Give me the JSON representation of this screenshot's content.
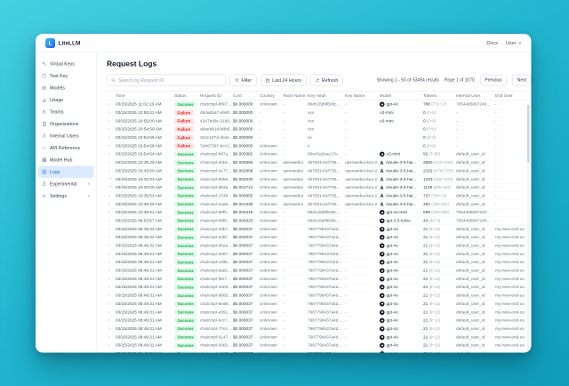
{
  "colors": {
    "accent": "#2563eb",
    "success_text": "#16a34a",
    "success_bg": "#dcfce7",
    "failure_text": "#dc2626",
    "failure_bg": "#fee2e2",
    "bg_gradient_start": "#46d0e2",
    "bg_gradient_end": "#0f9cba"
  },
  "topbar": {
    "brand": "LiteLLM",
    "docs": "Docs",
    "user": "User"
  },
  "sidebar": {
    "items": [
      {
        "label": "Virtual Keys",
        "icon": "key-icon",
        "selected": false,
        "chevron": false
      },
      {
        "label": "Test Key",
        "icon": "shield-icon",
        "selected": false,
        "chevron": false
      },
      {
        "label": "Models",
        "icon": "box-icon",
        "selected": false,
        "chevron": false
      },
      {
        "label": "Usage",
        "icon": "chart-icon",
        "selected": false,
        "chevron": false
      },
      {
        "label": "Teams",
        "icon": "users-icon",
        "selected": false,
        "chevron": false
      },
      {
        "label": "Organizations",
        "icon": "building-icon",
        "selected": false,
        "chevron": false
      },
      {
        "label": "Internal Users",
        "icon": "user-icon",
        "selected": false,
        "chevron": false
      },
      {
        "label": "API Reference",
        "icon": "code-icon",
        "selected": false,
        "chevron": false
      },
      {
        "label": "Model Hub",
        "icon": "grid-icon",
        "selected": false,
        "chevron": false
      },
      {
        "label": "Logs",
        "icon": "logs-icon",
        "selected": true,
        "chevron": false
      },
      {
        "label": "Experimental",
        "icon": "flask-icon",
        "selected": false,
        "chevron": true
      },
      {
        "label": "Settings",
        "icon": "gear-icon",
        "selected": false,
        "chevron": true
      }
    ]
  },
  "page": {
    "title": "Request Logs"
  },
  "toolbar": {
    "search_placeholder": "Search by Request ID",
    "filter": "Filter",
    "time_range": "Last 24 Hours",
    "refresh": "Refresh",
    "showing": "Showing 1 - 50 of 53494 results",
    "page_info": "Page 1 of 1070",
    "previous": "Previous",
    "next": "Next"
  },
  "table": {
    "columns": [
      "",
      "Time",
      "Status",
      "Request ID",
      "Cost",
      "Country",
      "Team Name",
      "Key Hash",
      "Key Name",
      "Model",
      "Tokens",
      "Internal User",
      "End User"
    ],
    "rows": [
      {
        "chev": "right",
        "time": "03/15/2025 11:02:10 AM",
        "status": "Success",
        "request_id": "chatcmpl-8807...",
        "cost": "$0.000000",
        "country": "Unknown",
        "team": "-",
        "key_hash": "88dc28d9f838c...",
        "key_name": "-",
        "model": "gpt-4o",
        "provider": "openai",
        "tokens": "788",
        "tokens_detail": "(771+17)",
        "internal_user": "7054485087240...",
        "end_user": "-"
      },
      {
        "chev": "right",
        "time": "03/15/2025 10:55:42 AM",
        "status": "Failure",
        "request_id": "d8dad5a7-eb80...",
        "cost": "$0.000000",
        "country": "-",
        "team": "-",
        "key_hash": "xxx",
        "key_name": "-",
        "model": "o3-mini",
        "provider": "",
        "tokens": "0",
        "tokens_detail": "(0+0)",
        "internal_user": "-",
        "end_user": "-"
      },
      {
        "chev": "right",
        "time": "03/15/2025 10:55:00 AM",
        "status": "Failure",
        "request_id": "4347bd9c-3188...",
        "cost": "$0.000000",
        "country": "-",
        "team": "-",
        "key_hash": "xxx",
        "key_name": "-",
        "model": "o3-mini",
        "provider": "",
        "tokens": "0",
        "tokens_detail": "(0+0)",
        "internal_user": "-",
        "end_user": "-"
      },
      {
        "chev": "right",
        "time": "03/15/2025 10:54:59 AM",
        "status": "Failure",
        "request_id": "a8aeb81d-b8b8...",
        "cost": "$0.000000",
        "country": "-",
        "team": "-",
        "key_hash": "xxx",
        "key_name": "-",
        "model": "",
        "provider": "",
        "tokens": "0",
        "tokens_detail": "(0+0)",
        "internal_user": "-",
        "end_user": "-"
      },
      {
        "chev": "right",
        "time": "03/15/2025 10:54:59 AM",
        "status": "Failure",
        "request_id": "324c187d-4b4e...",
        "cost": "$0.000000",
        "country": "-",
        "team": "-",
        "key_hash": "xx",
        "key_name": "-",
        "model": "",
        "provider": "",
        "tokens": "0",
        "tokens_detail": "(0+0)",
        "internal_user": "-",
        "end_user": "-"
      },
      {
        "chev": "right",
        "time": "03/15/2025 10:54:58 AM",
        "status": "Failure",
        "request_id": "7eb67387-bcc2...",
        "cost": "$0.000000",
        "country": "Unknown",
        "team": "-",
        "key_hash": "x",
        "key_name": "-",
        "model": "",
        "provider": "",
        "tokens": "0",
        "tokens_detail": "(0+0)",
        "internal_user": "-",
        "end_user": "-"
      },
      {
        "chev": "right",
        "time": "03/15/2025 10:54:54 AM",
        "status": "Success",
        "request_id": "chatcmpl-b87a...",
        "cost": "$0.000382",
        "country": "Unknown",
        "team": "-",
        "key_hash": "86ec5a2eac17e...",
        "key_name": "-",
        "model": "o3-mini",
        "provider": "openai",
        "tokens": "92",
        "tokens_detail": "(7+85)",
        "internal_user": "default_user_id",
        "end_user": "-"
      },
      {
        "chev": "right",
        "time": "03/15/2025 10:45:49 AM",
        "status": "Success",
        "request_id": "chatcmpl-ebbe...",
        "cost": "$0.000656",
        "country": "Unknown",
        "team": "openwebui",
        "key_hash": "4b7651c6cf795...",
        "key_name": "openwebui-key-2",
        "model": "claude-3-5-hai...",
        "provider": "anthropic",
        "tokens": "2580",
        "tokens_detail": "(2127+453)",
        "internal_user": "default_user_id",
        "end_user": "-"
      },
      {
        "chev": "right",
        "time": "03/15/2025 10:43:00 AM",
        "status": "Success",
        "request_id": "chatcmpl-4177...",
        "cost": "$0.002808",
        "country": "Unknown",
        "team": "openwebui",
        "key_hash": "4b7651c6cf795...",
        "key_name": "openwebui-key-2",
        "model": "claude-3-5-hai...",
        "provider": "anthropic",
        "tokens": "2102",
        "tokens_detail": "(1732+370)",
        "internal_user": "default_user_id",
        "end_user": "-"
      },
      {
        "chev": "down",
        "time": "03/15/2025 10:40:33 AM",
        "status": "Success",
        "request_id": "chatcmpl-5858...",
        "cost": "$0.002030",
        "country": "Unknown",
        "team": "openwebui",
        "key_hash": "4b7651c6cf795...",
        "key_name": "openwebui-key-2",
        "model": "claude-3-5-hai...",
        "provider": "anthropic",
        "tokens": "1433",
        "tokens_detail": "(1157+276)",
        "internal_user": "default_user_id",
        "end_user": "-"
      },
      {
        "chev": "down",
        "time": "03/15/2025 10:40:00 AM",
        "status": "Success",
        "request_id": "chatcmpl-883a...",
        "cost": "$0.001714",
        "country": "Unknown",
        "team": "openwebui",
        "key_hash": "4b7651c6cf795...",
        "key_name": "openwebui-key-2",
        "model": "claude-3-5-hai...",
        "provider": "anthropic",
        "tokens": "1139",
        "tokens_detail": "(885+254)",
        "internal_user": "default_user_id",
        "end_user": "-"
      },
      {
        "chev": "right",
        "time": "03/15/2025 10:39:53 AM",
        "status": "Success",
        "request_id": "chatcmpl-1748...",
        "cost": "$0.000855",
        "country": "Unknown",
        "team": "openwebui",
        "key_hash": "4b7651c6cf795...",
        "key_name": "openwebui-key-2",
        "model": "claude-3-5-hai...",
        "provider": "anthropic",
        "tokens": "727",
        "tokens_detail": "(704+23)",
        "internal_user": "default_user_id",
        "end_user": "-"
      },
      {
        "chev": "right",
        "time": "03/15/2025 10:39:46 AM",
        "status": "Success",
        "request_id": "chatcmpl-eaa8...",
        "cost": "$0.001338",
        "country": "Unknown",
        "team": "openwebui",
        "key_hash": "4b7651c6cf795...",
        "key_name": "openwebui-key-2",
        "model": "claude-3-5-hai...",
        "provider": "anthropic",
        "tokens": "482",
        "tokens_detail": "(180+302)",
        "internal_user": "default_user_id",
        "end_user": "-"
      },
      {
        "chev": "right",
        "time": "03/15/2025 10:38:41 AM",
        "status": "Success",
        "request_id": "chatcmpl-88f5...",
        "cost": "$0.000445",
        "country": "Unknown",
        "team": "-",
        "key_hash": "88dc28d9f838c...",
        "key_name": "-",
        "model": "gpt-4o-mini",
        "provider": "openai",
        "tokens": "899",
        "tokens_detail": "(209+690)",
        "internal_user": "7054485087240...",
        "end_user": "-"
      },
      {
        "chev": "right",
        "time": "03/15/2025 09:53:57 AM",
        "status": "Success",
        "request_id": "chatcmpl-88f8...",
        "cost": "$0.000325",
        "country": "Unknown",
        "team": "-",
        "key_hash": "88dc28d9f838c...",
        "key_name": "-",
        "model": "gpt-3.5-turbo",
        "provider": "openai",
        "tokens": "44",
        "tokens_detail": "(41+3)",
        "internal_user": "7054485087240...",
        "end_user": "-"
      },
      {
        "chev": "right",
        "time": "03/15/2025 08:49:32 AM",
        "status": "Success",
        "request_id": "chatcmpl-4db7...",
        "cost": "$0.000037",
        "country": "Unknown",
        "team": "-",
        "key_hash": "7987798437a4d...",
        "key_name": "-",
        "model": "gpt-4o",
        "provider": "openai",
        "tokens": "21",
        "tokens_detail": "(9+12)",
        "internal_user": "default_user_id",
        "end_user": "my-new-end-user-1"
      },
      {
        "chev": "right",
        "time": "03/15/2025 08:49:32 AM",
        "status": "Success",
        "request_id": "chatcmpl-2d8f...",
        "cost": "$0.000037",
        "country": "Unknown",
        "team": "-",
        "key_hash": "7987798437a4d...",
        "key_name": "-",
        "model": "gpt-4o",
        "provider": "openai",
        "tokens": "21",
        "tokens_detail": "(9+12)",
        "internal_user": "default_user_id",
        "end_user": "my-new-end-user-1"
      },
      {
        "chev": "right",
        "time": "03/15/2025 08:49:32 AM",
        "status": "Success",
        "request_id": "chatcmpl-d52a...",
        "cost": "$0.000037",
        "country": "Unknown",
        "team": "-",
        "key_hash": "7987798437a4d...",
        "key_name": "-",
        "model": "gpt-4o",
        "provider": "openai",
        "tokens": "21",
        "tokens_detail": "(9+12)",
        "internal_user": "default_user_id",
        "end_user": "my-new-end-user-1"
      },
      {
        "chev": "right",
        "time": "03/15/2025 08:49:31 AM",
        "status": "Success",
        "request_id": "chatcmpl-a087...",
        "cost": "$0.000037",
        "country": "Unknown",
        "team": "-",
        "key_hash": "7987798437a4d...",
        "key_name": "-",
        "model": "gpt-4o",
        "provider": "openai",
        "tokens": "21",
        "tokens_detail": "(9+12)",
        "internal_user": "default_user_id",
        "end_user": "my-new-end-user-1"
      },
      {
        "chev": "right",
        "time": "03/15/2025 08:49:31 AM",
        "status": "Success",
        "request_id": "chatcmpl-cd3b...",
        "cost": "$0.000037",
        "country": "Unknown",
        "team": "-",
        "key_hash": "7987798437a4d...",
        "key_name": "-",
        "model": "gpt-4o",
        "provider": "openai",
        "tokens": "21",
        "tokens_detail": "(9+12)",
        "internal_user": "default_user_id",
        "end_user": "my-new-end-user-1"
      },
      {
        "chev": "right",
        "time": "03/15/2025 08:49:31 AM",
        "status": "Success",
        "request_id": "chatcmpl-da81...",
        "cost": "$0.000037",
        "country": "Unknown",
        "team": "-",
        "key_hash": "7987798437a4d...",
        "key_name": "-",
        "model": "gpt-4o",
        "provider": "openai",
        "tokens": "21",
        "tokens_detail": "(9+12)",
        "internal_user": "default_user_id",
        "end_user": "my-new-end-user-1"
      },
      {
        "chev": "right",
        "time": "03/15/2025 08:49:31 AM",
        "status": "Success",
        "request_id": "chatcmpl-f5e7...",
        "cost": "$0.000037",
        "country": "Unknown",
        "team": "-",
        "key_hash": "7987798437a4d...",
        "key_name": "-",
        "model": "gpt-4o",
        "provider": "openai",
        "tokens": "21",
        "tokens_detail": "(9+12)",
        "internal_user": "default_user_id",
        "end_user": "my-new-end-user-1"
      },
      {
        "chev": "right",
        "time": "03/15/2025 08:49:31 AM",
        "status": "Success",
        "request_id": "chatcmpl-43e9...",
        "cost": "$0.000037",
        "country": "Unknown",
        "team": "-",
        "key_hash": "7987798437a4d...",
        "key_name": "-",
        "model": "gpt-4o",
        "provider": "openai",
        "tokens": "21",
        "tokens_detail": "(9+12)",
        "internal_user": "default_user_id",
        "end_user": "my-new-end-user-1"
      },
      {
        "chev": "right",
        "time": "03/15/2025 08:49:31 AM",
        "status": "Success",
        "request_id": "chatcmpl-d865...",
        "cost": "$0.000037",
        "country": "Unknown",
        "team": "-",
        "key_hash": "7987798437a4d...",
        "key_name": "-",
        "model": "gpt-4o",
        "provider": "openai",
        "tokens": "21",
        "tokens_detail": "(9+12)",
        "internal_user": "default_user_id",
        "end_user": "my-new-end-user-1"
      },
      {
        "chev": "right",
        "time": "03/15/2025 08:49:31 AM",
        "status": "Success",
        "request_id": "chatcmpl-6ed8...",
        "cost": "$0.000037",
        "country": "Unknown",
        "team": "-",
        "key_hash": "7987798437a4d...",
        "key_name": "-",
        "model": "gpt-4o",
        "provider": "openai",
        "tokens": "21",
        "tokens_detail": "(9+12)",
        "internal_user": "default_user_id",
        "end_user": "my-new-end-user-1"
      },
      {
        "chev": "right",
        "time": "03/15/2025 08:49:31 AM",
        "status": "Success",
        "request_id": "chatcmpl-e891...",
        "cost": "$0.000037",
        "country": "Unknown",
        "team": "-",
        "key_hash": "7987798437a4d...",
        "key_name": "-",
        "model": "gpt-4o",
        "provider": "openai",
        "tokens": "21",
        "tokens_detail": "(9+12)",
        "internal_user": "default_user_id",
        "end_user": "my-new-end-user-1"
      },
      {
        "chev": "right",
        "time": "03/15/2025 08:49:31 AM",
        "status": "Success",
        "request_id": "chatcmpl-6cc7...",
        "cost": "$0.000037",
        "country": "Unknown",
        "team": "-",
        "key_hash": "7987798437a4d...",
        "key_name": "-",
        "model": "gpt-4o",
        "provider": "openai",
        "tokens": "21",
        "tokens_detail": "(9+12)",
        "internal_user": "default_user_id",
        "end_user": "my-new-end-user-1"
      },
      {
        "chev": "right",
        "time": "03/15/2025 08:49:31 AM",
        "status": "Success",
        "request_id": "chatcmpl-77e1...",
        "cost": "$0.000037",
        "country": "Unknown",
        "team": "-",
        "key_hash": "7987798437a4d...",
        "key_name": "-",
        "model": "gpt-4o",
        "provider": "openai",
        "tokens": "21",
        "tokens_detail": "(9+12)",
        "internal_user": "default_user_id",
        "end_user": "my-new-end-user-1"
      },
      {
        "chev": "right",
        "time": "03/15/2025 08:49:31 AM",
        "status": "Success",
        "request_id": "chatcmpl-6147...",
        "cost": "$0.000037",
        "country": "Unknown",
        "team": "-",
        "key_hash": "7987798437a4d...",
        "key_name": "-",
        "model": "gpt-4o",
        "provider": "openai",
        "tokens": "21",
        "tokens_detail": "(9+12)",
        "internal_user": "default_user_id",
        "end_user": "my-new-end-user-1"
      },
      {
        "chev": "right",
        "time": "03/15/2025 08:49:31 AM",
        "status": "Success",
        "request_id": "chatcmpl-0960...",
        "cost": "$0.000037",
        "country": "Unknown",
        "team": "-",
        "key_hash": "7987798437a4d...",
        "key_name": "-",
        "model": "gpt-4o",
        "provider": "openai",
        "tokens": "21",
        "tokens_detail": "(9+12)",
        "internal_user": "default_user_id",
        "end_user": "my-new-end-user-1"
      },
      {
        "chev": "right",
        "time": "03/15/2025 08:49:31 AM",
        "status": "Success",
        "request_id": "chatcmpl-a217...",
        "cost": "$0.000037",
        "country": "Unknown",
        "team": "-",
        "key_hash": "7987798437a4d...",
        "key_name": "-",
        "model": "gpt-4o",
        "provider": "openai",
        "tokens": "21",
        "tokens_detail": "(9+12)",
        "internal_user": "default_user_id",
        "end_user": "my-new-end-user-1"
      }
    ]
  }
}
